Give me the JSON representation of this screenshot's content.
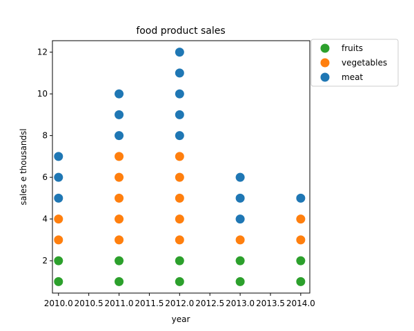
{
  "chart_data": {
    "type": "scatter",
    "title": "food product sales",
    "xlabel": "year",
    "ylabel": "sales e thousandsl",
    "xlim": [
      2009.9,
      2014.15
    ],
    "ylim": [
      0.45,
      12.55
    ],
    "xticks": [
      2010.0,
      2010.5,
      2011.0,
      2011.5,
      2012.0,
      2012.5,
      2013.0,
      2013.5,
      2014.0
    ],
    "xtick_labels": [
      "2010.0",
      "2010.5",
      "2011.0",
      "2011.5",
      "2012.0",
      "2012.5",
      "2013.0",
      "2013.5",
      "2014.0"
    ],
    "yticks": [
      2,
      4,
      6,
      8,
      10,
      12
    ],
    "ytick_labels": [
      "2",
      "4",
      "6",
      "8",
      "10",
      "12"
    ],
    "grid": false,
    "legend_position": "outside-top-right",
    "series": [
      {
        "name": "fruits",
        "color": "#2ca02c",
        "points": [
          [
            2010,
            1
          ],
          [
            2010,
            2
          ],
          [
            2011,
            1
          ],
          [
            2011,
            2
          ],
          [
            2012,
            1
          ],
          [
            2012,
            2
          ],
          [
            2013,
            1
          ],
          [
            2013,
            2
          ],
          [
            2014,
            1
          ],
          [
            2014,
            2
          ]
        ]
      },
      {
        "name": "vegetables",
        "color": "#ff7f0e",
        "points": [
          [
            2010,
            3
          ],
          [
            2010,
            4
          ],
          [
            2011,
            3
          ],
          [
            2011,
            4
          ],
          [
            2011,
            5
          ],
          [
            2011,
            6
          ],
          [
            2011,
            7
          ],
          [
            2012,
            3
          ],
          [
            2012,
            4
          ],
          [
            2012,
            5
          ],
          [
            2012,
            6
          ],
          [
            2012,
            7
          ],
          [
            2013,
            3
          ],
          [
            2014,
            3
          ],
          [
            2014,
            4
          ]
        ]
      },
      {
        "name": "meat",
        "color": "#1f77b4",
        "points": [
          [
            2010,
            5
          ],
          [
            2010,
            6
          ],
          [
            2010,
            7
          ],
          [
            2011,
            8
          ],
          [
            2011,
            9
          ],
          [
            2011,
            10
          ],
          [
            2012,
            8
          ],
          [
            2012,
            9
          ],
          [
            2012,
            10
          ],
          [
            2012,
            11
          ],
          [
            2012,
            12
          ],
          [
            2013,
            4
          ],
          [
            2013,
            5
          ],
          [
            2013,
            6
          ],
          [
            2014,
            5
          ]
        ]
      }
    ]
  }
}
